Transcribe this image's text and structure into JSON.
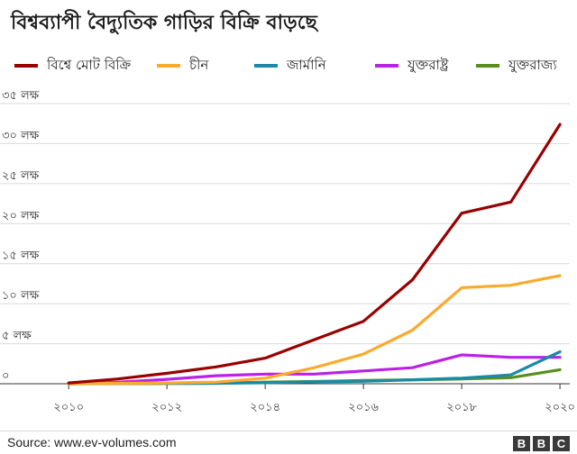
{
  "header": {
    "title": "বিশ্বব্যাপী বৈদ্যুতিক গাড়ির বিক্রি বাড়ছে"
  },
  "footer": {
    "source": "Source: www.ev-volumes.com",
    "logo": [
      "B",
      "B",
      "C"
    ]
  },
  "chart_data": {
    "type": "line",
    "title": "বিশ্বব্যাপী বৈদ্যুতিক গাড়ির বিক্রি বাড়ছে",
    "xlabel": "",
    "ylabel": "",
    "x": [
      2010,
      2011,
      2012,
      2013,
      2014,
      2015,
      2016,
      2017,
      2018,
      2019,
      2020
    ],
    "xticks": [
      2010,
      2012,
      2014,
      2016,
      2018,
      2020
    ],
    "xtick_labels": [
      "২০১০",
      "২০১২",
      "২০১৪",
      "২০১৬",
      "২০১৮",
      "২০২০"
    ],
    "yticks": [
      0,
      500000,
      1000000,
      1500000,
      2000000,
      2500000,
      3000000,
      3500000
    ],
    "ytick_labels": [
      "০",
      "৫ লক্ষ",
      "১০ লক্ষ",
      "১৫ লক্ষ",
      "২০ লক্ষ",
      "২৫ লক্ষ",
      "৩০ লক্ষ",
      "৩৫ লক্ষ"
    ],
    "ylim": [
      0,
      3500000
    ],
    "xlim": [
      2009.85,
      2020.2
    ],
    "grid": "horizontal",
    "legend_position": "top",
    "series": [
      {
        "name": "বিশ্বে মোট বিক্রি",
        "color": "#990000",
        "values": [
          10000,
          60000,
          130000,
          210000,
          320000,
          550000,
          780000,
          1300000,
          2130000,
          2270000,
          3240000
        ]
      },
      {
        "name": "চীন",
        "color": "#fcaa2e",
        "values": [
          0,
          5000,
          10000,
          20000,
          70000,
          200000,
          370000,
          670000,
          1200000,
          1230000,
          1350000
        ]
      },
      {
        "name": "জার্মানি",
        "color": "#1a8aa8",
        "values": [
          0,
          2000,
          3000,
          6000,
          12000,
          25000,
          30000,
          50000,
          70000,
          110000,
          400000
        ]
      },
      {
        "name": "যুক্তরাষ্ট্র",
        "color": "#bb22e6",
        "values": [
          0,
          18000,
          55000,
          100000,
          120000,
          120000,
          160000,
          200000,
          360000,
          330000,
          330000
        ]
      },
      {
        "name": "যুক্তরাজ্য",
        "color": "#588f1c",
        "values": [
          0,
          1000,
          3000,
          6000,
          20000,
          28000,
          40000,
          50000,
          60000,
          75000,
          175000
        ]
      }
    ]
  }
}
